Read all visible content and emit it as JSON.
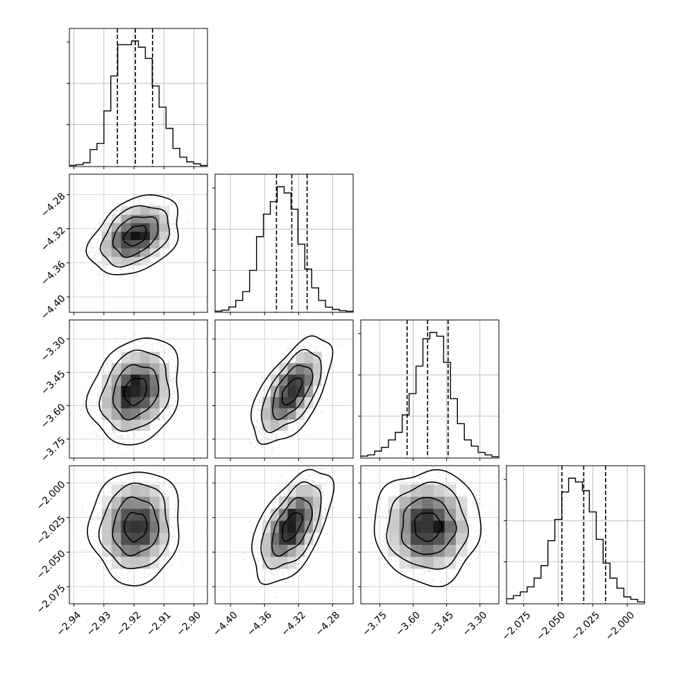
{
  "chart_data": {
    "type": "corner",
    "title": "",
    "parameters": [
      {
        "index": 0,
        "range": [
          -2.9415,
          -2.8955
        ],
        "ticks": [
          -2.94,
          -2.93,
          -2.92,
          -2.91,
          -2.9
        ],
        "tick_labels": [
          "−2.94",
          "−2.93",
          "−2.92",
          "−2.91",
          "−2.90"
        ],
        "quantiles": [
          -2.9255,
          -2.9195,
          -2.9138
        ],
        "mean": -2.9195,
        "sigma": 0.0058
      },
      {
        "index": 1,
        "range": [
          -4.418,
          -4.256
        ],
        "ticks": [
          -4.4,
          -4.36,
          -4.32,
          -4.28
        ],
        "tick_labels": [
          "−4.40",
          "−4.36",
          "−4.32",
          "−4.28"
        ],
        "quantiles": [
          -4.346,
          -4.328,
          -4.31
        ],
        "mean": -4.328,
        "sigma": 0.018
      },
      {
        "index": 2,
        "range": [
          -3.835,
          -3.215
        ],
        "ticks": [
          -3.75,
          -3.6,
          -3.45,
          -3.3
        ],
        "tick_labels": [
          "−3.75",
          "−3.60",
          "−3.45",
          "−3.30"
        ],
        "quantiles": [
          -3.627,
          -3.535,
          -3.443
        ],
        "mean": -3.535,
        "sigma": 0.092
      },
      {
        "index": 3,
        "range": [
          -2.0874,
          -1.9875
        ],
        "ticks": [
          -2.075,
          -2.05,
          -2.025,
          -2.0
        ],
        "tick_labels": [
          "−2.075",
          "−2.050",
          "−2.025",
          "−2.000"
        ],
        "quantiles": [
          -2.0473,
          -2.0315,
          -2.0157
        ],
        "mean": -2.0315,
        "sigma": 0.0158
      }
    ],
    "correlations": {
      "1-0": 0.35,
      "2-0": 0.2,
      "2-1": 0.6,
      "3-0": 0.05,
      "3-1": 0.55,
      "3-2": 0.0
    },
    "diagonal_histograms": [
      [
        0.004,
        0.01,
        0.025,
        0.13,
        0.18,
        0.44,
        0.72,
        0.97,
        0.97,
        1.0,
        0.95,
        0.86,
        0.64,
        0.47,
        0.3,
        0.14,
        0.07,
        0.032,
        0.016,
        0.003
      ],
      [
        0.004,
        0.012,
        0.037,
        0.09,
        0.16,
        0.33,
        0.6,
        0.78,
        0.88,
        1.0,
        0.95,
        0.82,
        0.54,
        0.34,
        0.19,
        0.09,
        0.036,
        0.018,
        0.008,
        0.003
      ],
      [
        0.01,
        0.02,
        0.05,
        0.08,
        0.14,
        0.2,
        0.34,
        0.51,
        0.73,
        0.95,
        1.0,
        0.97,
        0.76,
        0.47,
        0.27,
        0.14,
        0.09,
        0.04,
        0.02,
        0.005
      ],
      [
        0.035,
        0.06,
        0.09,
        0.13,
        0.2,
        0.3,
        0.5,
        0.67,
        0.89,
        1.0,
        0.97,
        0.9,
        0.73,
        0.51,
        0.32,
        0.2,
        0.12,
        0.05,
        0.03,
        0.01
      ]
    ],
    "contour_levels_sigma": [
      0.5,
      1.0,
      1.5,
      2.0
    ],
    "grid": true,
    "legend": "none"
  }
}
